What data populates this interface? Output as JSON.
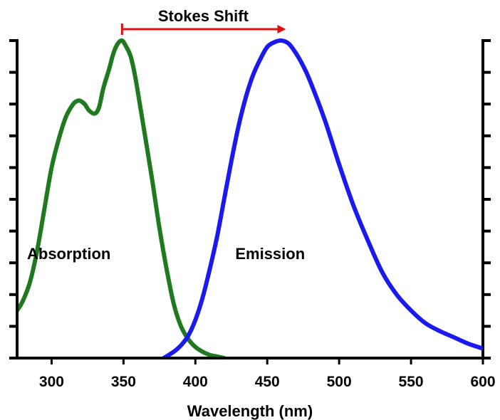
{
  "chart_data": {
    "type": "line",
    "title": "",
    "xlabel": "Wavelength (nm)",
    "ylabel": "",
    "xlim": [
      276,
      600
    ],
    "ylim": [
      0,
      1
    ],
    "x_ticks": [
      "300",
      "350",
      "400",
      "450",
      "500",
      "550",
      "600"
    ],
    "y_ticks_labeled": false,
    "grid": false,
    "legend": "none",
    "series": [
      {
        "name": "Absorption",
        "color": "#1f7a1f",
        "x": [
          276,
          280,
          285,
          290,
          295,
          300,
          305,
          310,
          315,
          318,
          320,
          323,
          326,
          330,
          333,
          336,
          340,
          343,
          346,
          349,
          352,
          355,
          358,
          361,
          365,
          370,
          375,
          380,
          385,
          390,
          395,
          400,
          405,
          410,
          415,
          420
        ],
        "y": [
          0.15,
          0.18,
          0.24,
          0.34,
          0.47,
          0.6,
          0.69,
          0.76,
          0.8,
          0.81,
          0.81,
          0.8,
          0.78,
          0.77,
          0.79,
          0.85,
          0.91,
          0.96,
          0.99,
          1.0,
          0.98,
          0.95,
          0.89,
          0.81,
          0.7,
          0.56,
          0.41,
          0.28,
          0.17,
          0.1,
          0.06,
          0.035,
          0.02,
          0.01,
          0.005,
          0.0
        ]
      },
      {
        "name": "Emission",
        "color": "#1a1aee",
        "x": [
          378,
          385,
          390,
          395,
          400,
          405,
          410,
          415,
          420,
          425,
          430,
          435,
          440,
          445,
          450,
          455,
          460,
          465,
          470,
          475,
          480,
          490,
          500,
          510,
          520,
          530,
          540,
          550,
          560,
          570,
          580,
          590,
          600
        ],
        "y": [
          0.0,
          0.02,
          0.04,
          0.07,
          0.12,
          0.19,
          0.28,
          0.38,
          0.5,
          0.62,
          0.73,
          0.82,
          0.89,
          0.94,
          0.98,
          0.995,
          1.0,
          0.99,
          0.96,
          0.92,
          0.87,
          0.75,
          0.61,
          0.48,
          0.37,
          0.27,
          0.2,
          0.15,
          0.11,
          0.085,
          0.065,
          0.045,
          0.03
        ]
      }
    ],
    "annotations": [
      {
        "text": "Absorption",
        "x": 312,
        "y": 0.33
      },
      {
        "text": "Emission",
        "x": 452,
        "y": 0.33
      },
      {
        "text": "Stokes Shift",
        "from_x": 349,
        "to_x": 462,
        "color": "#e01010"
      }
    ]
  }
}
